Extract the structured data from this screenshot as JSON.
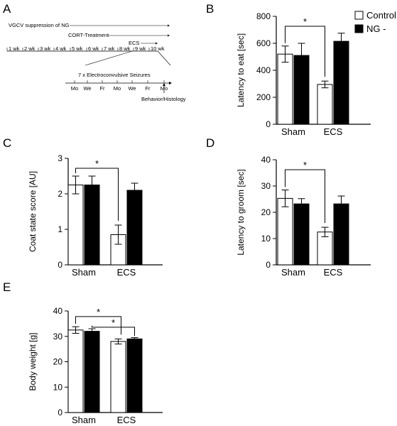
{
  "panels": {
    "A": "A",
    "B": "B",
    "C": "C",
    "D": "D",
    "E": "E"
  },
  "timeline": {
    "vgcv": "VGCV suppression of NG",
    "cort": "CORT-Treatment",
    "ecs": "ECS",
    "weeks": [
      "1 wk",
      "2 wk",
      "3 wk",
      "4 wk",
      "5 wk",
      "6 wk",
      "7 wk",
      "8 wk",
      "9 wk",
      "10 wk"
    ],
    "seizures": "7 x Electroconvulsive Seizures",
    "days": [
      "Mo",
      "We",
      "Fr",
      "Mo",
      "We",
      "Fr",
      "Mo"
    ],
    "endpoint": "Behavior/Histology"
  },
  "legend": {
    "items": [
      {
        "name": "Control",
        "color": "#ffffff"
      },
      {
        "name": "NG -",
        "color": "#000000"
      }
    ]
  },
  "significance_marker": "*",
  "chart_data": [
    {
      "panel": "B",
      "type": "bar",
      "categories": [
        "Sham",
        "ECS"
      ],
      "ylabel": "Latency to eat [sec]",
      "ylim": [
        0,
        800
      ],
      "yticks": [
        0,
        200,
        400,
        600,
        800
      ],
      "series": [
        {
          "name": "Control",
          "values": [
            520,
            295
          ],
          "errors": [
            60,
            25
          ]
        },
        {
          "name": "NG -",
          "values": [
            510,
            615
          ],
          "errors": [
            90,
            60
          ]
        }
      ],
      "significance": [
        [
          "Sham",
          "ECS"
        ]
      ]
    },
    {
      "panel": "C",
      "type": "bar",
      "categories": [
        "Sham",
        "ECS"
      ],
      "ylabel": "Coat state score [AU]",
      "ylim": [
        0,
        3
      ],
      "yticks": [
        0,
        1,
        2,
        3
      ],
      "series": [
        {
          "name": "Control",
          "values": [
            2.25,
            0.85
          ],
          "errors": [
            0.25,
            0.27
          ]
        },
        {
          "name": "NG -",
          "values": [
            2.25,
            2.1
          ],
          "errors": [
            0.25,
            0.2
          ]
        }
      ],
      "significance": [
        [
          "Sham",
          "ECS"
        ]
      ]
    },
    {
      "panel": "D",
      "type": "bar",
      "categories": [
        "Sham",
        "ECS"
      ],
      "ylabel": "Latency to groom [sec]",
      "ylim": [
        0,
        40
      ],
      "yticks": [
        0,
        10,
        20,
        30,
        40
      ],
      "series": [
        {
          "name": "Control",
          "values": [
            25.3,
            12.5
          ],
          "errors": [
            3.2,
            1.8
          ]
        },
        {
          "name": "NG -",
          "values": [
            23.2,
            23.2
          ],
          "errors": [
            2.0,
            3.0
          ]
        }
      ],
      "significance": [
        [
          "Sham",
          "ECS"
        ]
      ]
    },
    {
      "panel": "E",
      "type": "bar",
      "categories": [
        "Sham",
        "ECS"
      ],
      "ylabel": "Body weight [g]",
      "ylim": [
        0,
        40
      ],
      "yticks": [
        0,
        10,
        20,
        30,
        40
      ],
      "series": [
        {
          "name": "Control",
          "values": [
            32.5,
            28.0
          ],
          "errors": [
            1.3,
            1.0
          ]
        },
        {
          "name": "NG -",
          "values": [
            32.0,
            29.0
          ],
          "errors": [
            1.0,
            0.5
          ]
        }
      ],
      "significance": [
        [
          "Sham",
          "ECS"
        ],
        [
          "NG - Sham",
          "ECS"
        ]
      ]
    }
  ]
}
